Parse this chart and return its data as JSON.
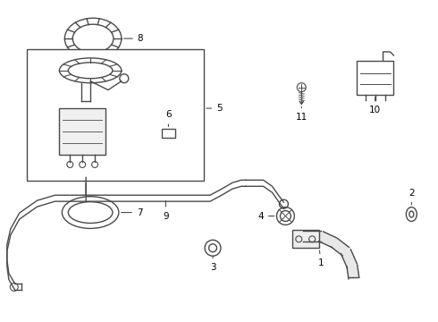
{
  "background_color": "#ffffff",
  "line_color": "#4a4a4a",
  "label_color": "#000000",
  "fig_width": 4.9,
  "fig_height": 3.6,
  "dpi": 100
}
